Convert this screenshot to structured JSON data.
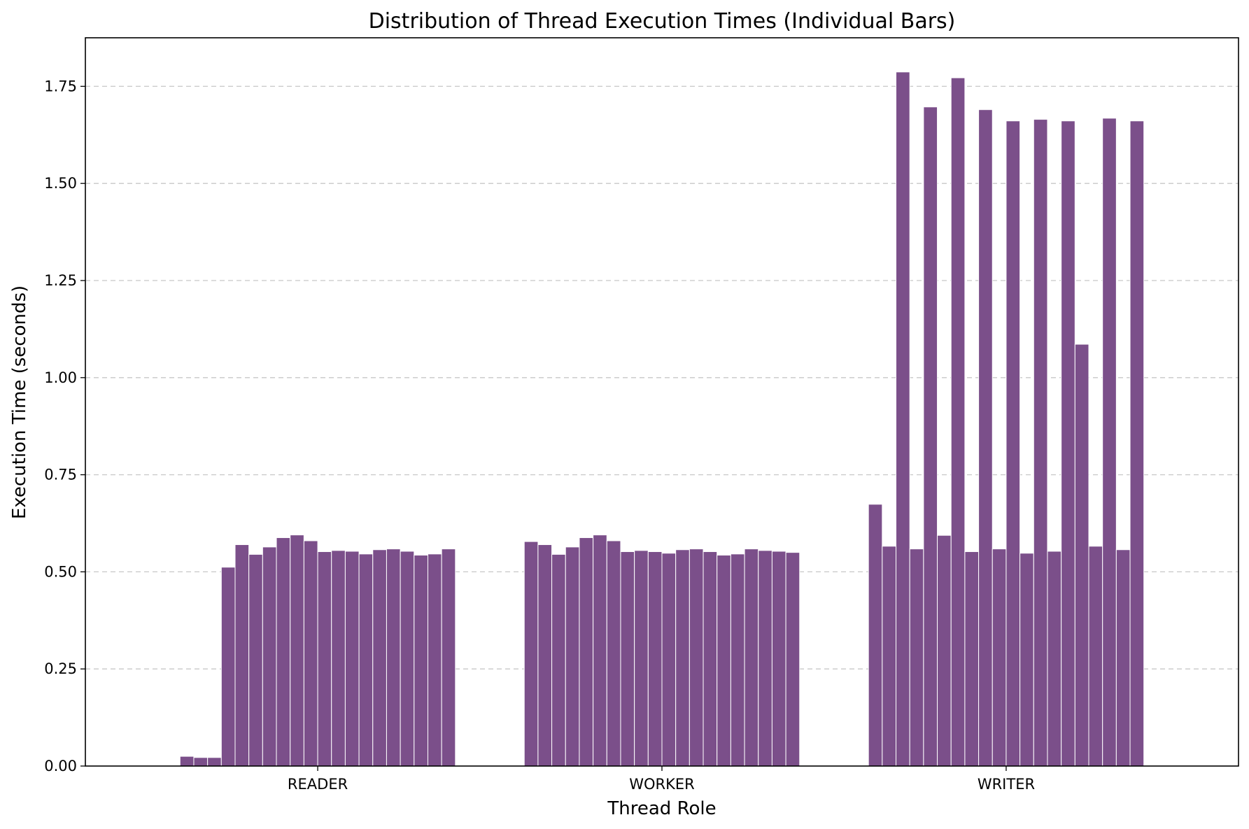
{
  "chart_data": {
    "type": "bar",
    "title": "Distribution of Thread Execution Times (Individual Bars)",
    "xlabel": "Thread Role",
    "ylabel": "Execution Time (seconds)",
    "ylim": [
      0,
      1.875
    ],
    "yticks": [
      "0.00",
      "0.25",
      "0.50",
      "0.75",
      "1.00",
      "1.25",
      "1.50",
      "1.75"
    ],
    "grid": "y-dashed",
    "bar_color": "#7b4f8a",
    "categories": [
      "READER",
      "WORKER",
      "WRITER"
    ],
    "groups": [
      {
        "category": "READER",
        "values": [
          0.025,
          0.022,
          0.022,
          0.512,
          0.57,
          0.545,
          0.564,
          0.588,
          0.595,
          0.58,
          0.552,
          0.555,
          0.553,
          0.546,
          0.557,
          0.559,
          0.553,
          0.543,
          0.546,
          0.559
        ]
      },
      {
        "category": "WORKER",
        "values": [
          0.578,
          0.57,
          0.545,
          0.564,
          0.588,
          0.595,
          0.58,
          0.552,
          0.555,
          0.552,
          0.548,
          0.557,
          0.559,
          0.552,
          0.543,
          0.546,
          0.559,
          0.555,
          0.553,
          0.55
        ]
      },
      {
        "category": "WRITER",
        "values": [
          0.674,
          0.566,
          1.787,
          0.559,
          1.697,
          0.594,
          1.772,
          0.552,
          1.69,
          0.559,
          1.661,
          0.548,
          1.665,
          0.553,
          1.661,
          1.086,
          0.566,
          1.668,
          0.557,
          1.661
        ]
      }
    ]
  }
}
